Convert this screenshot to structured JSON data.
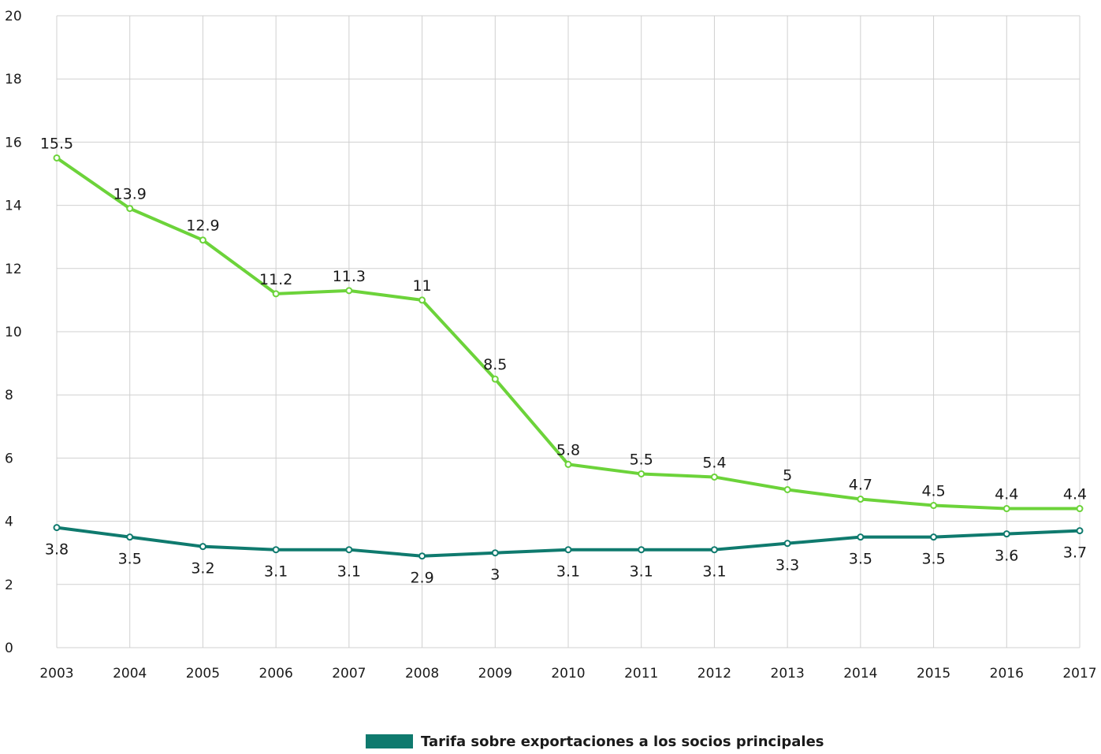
{
  "colors": {
    "tariff_line": "#0f7a6e",
    "upper_line": "#6cd33a",
    "grid": "#d0d0d0"
  },
  "legend": {
    "label": "Tarifa sobre exportaciones a los socios principales"
  },
  "chart_data": {
    "type": "line",
    "categories": [
      "2003",
      "2004",
      "2005",
      "2006",
      "2007",
      "2008",
      "2009",
      "2010",
      "2011",
      "2012",
      "2013",
      "2014",
      "2015",
      "2016",
      "2017"
    ],
    "ylim": [
      0,
      20
    ],
    "yticks": [
      "0",
      "2",
      "4",
      "6",
      "8",
      "10",
      "12",
      "14",
      "16",
      "18",
      "20"
    ],
    "grid": true,
    "legend_position": "bottom",
    "series": [
      {
        "name": "",
        "color": "#6cd33a",
        "values": [
          15.5,
          13.9,
          12.9,
          11.2,
          11.3,
          11,
          8.5,
          5.8,
          5.5,
          5.4,
          5,
          4.7,
          4.5,
          4.4,
          4.4
        ],
        "labels": [
          "15.5",
          "13.9",
          "12.9",
          "11.2",
          "11.3",
          "11",
          "8.5",
          "5.8",
          "5.5",
          "5.4",
          "5",
          "4.7",
          "4.5",
          "4.4",
          "4.4"
        ]
      },
      {
        "name": "Tarifa sobre exportaciones a los socios principales",
        "color": "#0f7a6e",
        "values": [
          3.8,
          3.5,
          3.2,
          3.1,
          3.1,
          2.9,
          3,
          3.1,
          3.1,
          3.1,
          3.3,
          3.5,
          3.5,
          3.6,
          3.7
        ],
        "labels": [
          "3.8",
          "3.5",
          "3.2",
          "3.1",
          "3.1",
          "2.9",
          "3",
          "3.1",
          "3.1",
          "3.1",
          "3.3",
          "3.5",
          "3.5",
          "3.6",
          "3.7"
        ]
      }
    ]
  }
}
